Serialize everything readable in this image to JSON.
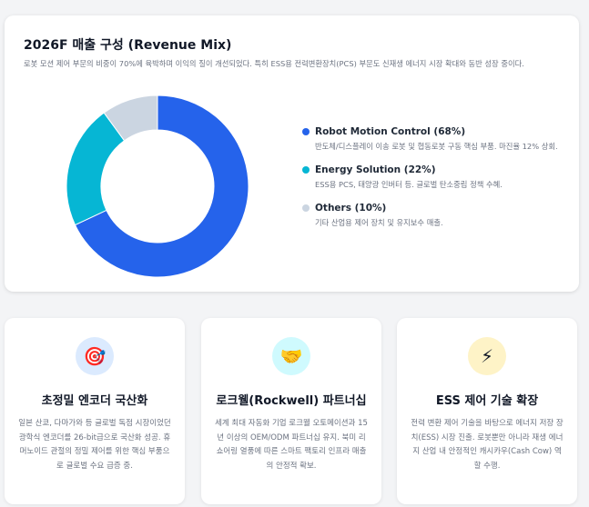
{
  "revenue": {
    "title": "2026F 매출 구성 (Revenue Mix)",
    "description": "로봇 모션 제어 부문의 비중이 70%에 육박하며 이익의 질이 개선되었다. 특히 ESS용 전력변환장치(PCS) 부문도 신재생 에너지 시장 확대와 동반 성장 중이다.",
    "legend": [
      {
        "title": "Robot Motion Control (68%)",
        "text": "반도체/디스플레이 이송 로봇 및 협동로봇 구동 핵심 부품. 마진율 12% 상회.",
        "color": "#2563eb"
      },
      {
        "title": "Energy Solution (22%)",
        "text": "ESS용 PCS, 태양광 인버터 등. 글로벌 탄소중립 정책 수혜.",
        "color": "#06b6d4"
      },
      {
        "title": "Others (10%)",
        "text": "기타 산업용 제어 장치 및 유지보수 매출.",
        "color": "#cbd5e1"
      }
    ]
  },
  "chart_data": {
    "type": "pie",
    "variant": "donut",
    "categories": [
      "Robot Motion Control",
      "Energy Solution",
      "Others"
    ],
    "values": [
      68,
      22,
      10
    ],
    "colors": [
      "#2563eb",
      "#06b6d4",
      "#cbd5e1"
    ]
  },
  "cards": [
    {
      "icon": "🎯",
      "icon_name": "target-icon",
      "icon_bg": "#dbeafe",
      "title": "초정밀 엔코더 국산화",
      "text": "일본 산쿄, 다마가와 등 글로벌 독점 시장이었던 광학식 엔코더를 26-bit급으로 국산화 성공. 휴머노이드 관절의 정밀 제어를 위한 핵심 부품으로 글로벌 수요 급증 중."
    },
    {
      "icon": "🤝",
      "icon_name": "handshake-icon",
      "icon_bg": "#cffafe",
      "title": "로크웰(Rockwell) 파트너십",
      "text": "세계 최대 자동화 기업 로크웰 오토메이션과 15년 이상의 OEM/ODM 파트너십 유지. 북미 리쇼어링 열풍에 따른 스마트 팩토리 인프라 매출의 안정적 확보."
    },
    {
      "icon": "⚡",
      "icon_name": "lightning-icon",
      "icon_bg": "#fef3c7",
      "title": "ESS 제어 기술 확장",
      "text": "전력 변환 제어 기술을 바탕으로 에너지 저장 장치(ESS) 시장 진출. 로봇뿐만 아니라 재생 에너지 산업 내 안정적인 캐시카우(Cash Cow) 역할 수행."
    }
  ]
}
